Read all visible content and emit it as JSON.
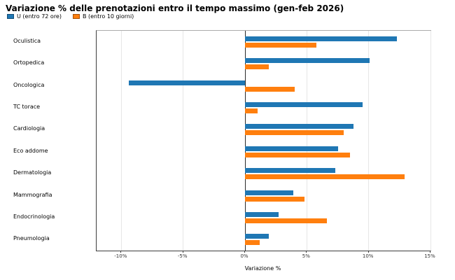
{
  "chart_data": {
    "type": "bar",
    "orientation": "horizontal",
    "title": "Variazione % delle prenotazioni entro il tempo massimo (gen-feb 2026)",
    "xlabel": "Variazione %",
    "categories": [
      "Oculistica",
      "Ortopedica",
      "Oncologica",
      "TC torace",
      "Cardiologia",
      "Eco addome",
      "Dermatologia",
      "Mammografia",
      "Endocrinologia",
      "Pneumologia"
    ],
    "series": [
      {
        "name": "U (entro 72 ore)",
        "color": "#1f77b4",
        "values": [
          12.3,
          10.1,
          -9.4,
          9.5,
          8.8,
          7.5,
          7.3,
          3.9,
          2.7,
          1.9
        ]
      },
      {
        "name": "B (entro 10 giorni)",
        "color": "#ff7f0e",
        "values": [
          5.8,
          1.9,
          4.0,
          1.0,
          8.0,
          8.5,
          12.9,
          4.8,
          6.6,
          1.2
        ]
      }
    ],
    "xlim": [
      -12,
      15
    ],
    "xticks": [
      -10,
      -5,
      0,
      5,
      10,
      15
    ],
    "xtick_labels": [
      "-10%",
      "-5%",
      "0%",
      "5%",
      "10%",
      "15%"
    ],
    "grid": true,
    "zero_line": true,
    "legend_position": "top-left",
    "colors": {
      "grid": "#e6e6e6",
      "zero_line": "#2b2b2b",
      "text": "#000000"
    }
  }
}
